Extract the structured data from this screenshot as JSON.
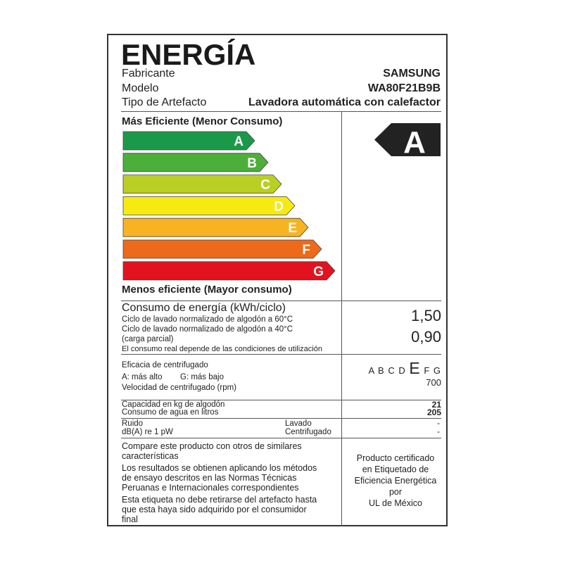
{
  "header": {
    "title": "ENERGÍA",
    "rows": [
      {
        "label": "Fabricante",
        "value": "SAMSUNG"
      },
      {
        "label": "Modelo",
        "value": "WA80F21B9B"
      },
      {
        "label": "Tipo de Artefacto",
        "value": "Lavadora automática con calefactor"
      }
    ]
  },
  "scale": {
    "top_label": "Más Eficiente (Menor Consumo)",
    "bottom_label": "Menos eficiente (Mayor consumo)",
    "classes": [
      {
        "letter": "A",
        "color": "#1a9a48"
      },
      {
        "letter": "B",
        "color": "#4caf3a"
      },
      {
        "letter": "C",
        "color": "#b9cf24"
      },
      {
        "letter": "D",
        "color": "#f6ea12"
      },
      {
        "letter": "E",
        "color": "#f8b322"
      },
      {
        "letter": "F",
        "color": "#ec6a1a"
      },
      {
        "letter": "G",
        "color": "#e2131e"
      }
    ],
    "rating": "A",
    "rating_color": "#222222"
  },
  "energy": {
    "title": "Consumo de energía (kWh/ciclo)",
    "line1": "Ciclo de lavado normalizado de algodón a 60°C",
    "value1": "1,50",
    "line2": "Ciclo de lavado normalizado de algodón a 40°C",
    "line3": "(carga parcial)",
    "value2": "0,90",
    "note": "El consumo real depende de las condiciones de utilización"
  },
  "spin": {
    "title": "Eficacia de centrifugado",
    "legend_a": "A: más alto",
    "legend_g": "G: más bajo",
    "speed_label": "Velocidad de centrifugado (rpm)",
    "letters_before": "A B C D",
    "selected": "E",
    "letters_after": "F G",
    "speed": "700"
  },
  "capacity": {
    "label": "Capacidad en kg de algodón",
    "value": "21",
    "water_label": "Consumo de agua en litros",
    "water_value": "205"
  },
  "noise": {
    "label": "Ruido",
    "unit": "dB(A) re 1 pW",
    "wash_label": "Lavado",
    "wash_value": "-",
    "spin_label": "Centrifugado",
    "spin_value": "-"
  },
  "footer": {
    "p1a": "Compare este producto con otros de similares",
    "p1b": "características",
    "p2a": "Los resultados se obtienen aplicando los métodos",
    "p2b": "de ensayo descritos en las Normas Técnicas",
    "p2c": "Peruanas e Internacionales correspondientes",
    "p3a": "Esta etiqueta no debe retirarse del artefacto hasta",
    "p3b": "que esta haya sido adquirido por el consumidor",
    "p3c": "final",
    "cert": [
      "Producto certificado",
      "en Etiquetado de",
      "Eficiencia Energética",
      "por",
      "UL de México"
    ]
  }
}
